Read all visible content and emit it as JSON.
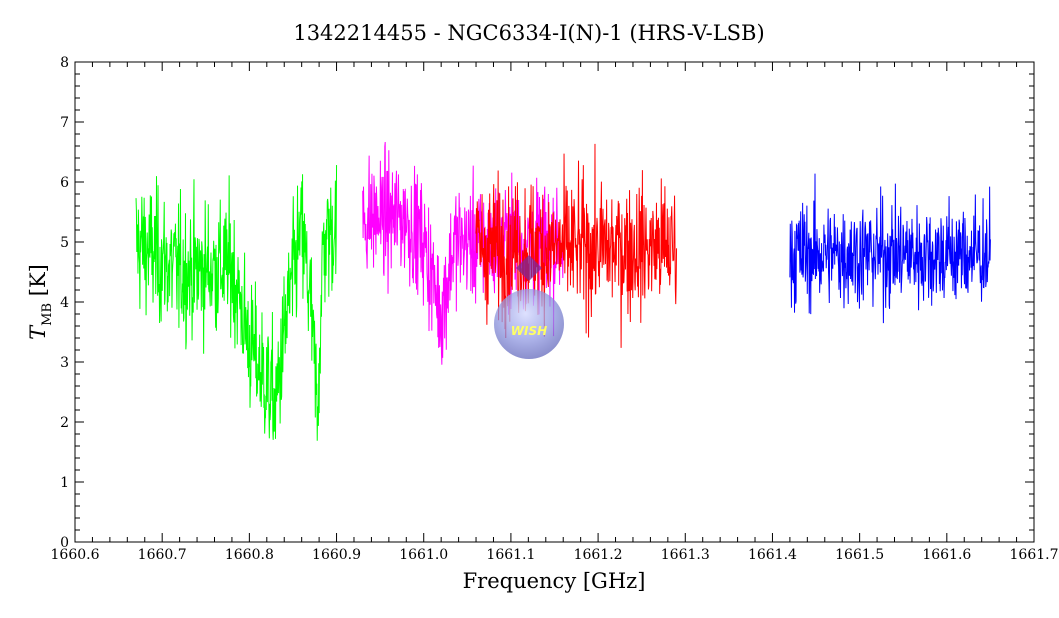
{
  "chart_data": {
    "type": "line",
    "title": "1342214455 - NGC6334-I(N)-1 (HRS-V-LSB)",
    "xlabel": "Frequency [GHz]",
    "ylabel": "T",
    "ylabel_sub": "MB",
    "ylabel_unit": "[K]",
    "xlim": [
      1660.6,
      1661.7
    ],
    "ylim": [
      0,
      8
    ],
    "xticks": [
      "1660.6",
      "1660.7",
      "1660.8",
      "1660.9",
      "1661.0",
      "1661.1",
      "1661.2",
      "1661.3",
      "1661.4",
      "1661.5",
      "1661.6",
      "1661.7"
    ],
    "yticks": [
      "0",
      "1",
      "2",
      "3",
      "4",
      "5",
      "6",
      "7",
      "8"
    ],
    "grid": false,
    "legend": "none",
    "logo_text": "WISH",
    "series": [
      {
        "color": "#00ff00",
        "x_range": [
          1660.67,
          1660.9
        ],
        "samples": 520,
        "noise": 1.0,
        "baseline": [
          [
            1660.67,
            5.0
          ],
          [
            1660.72,
            4.5
          ],
          [
            1660.78,
            4.6
          ],
          [
            1660.8,
            3.3
          ],
          [
            1660.83,
            2.3
          ],
          [
            1660.845,
            4.0
          ],
          [
            1660.86,
            5.2
          ],
          [
            1660.87,
            4.0
          ],
          [
            1660.878,
            2.2
          ],
          [
            1660.885,
            5.0
          ],
          [
            1660.9,
            5.3
          ]
        ]
      },
      {
        "color": "#ff00ff",
        "x_range": [
          1660.93,
          1661.16
        ],
        "samples": 500,
        "noise": 0.9,
        "baseline": [
          [
            1660.93,
            5.4
          ],
          [
            1660.98,
            5.4
          ],
          [
            1661.0,
            5.0
          ],
          [
            1661.02,
            3.8
          ],
          [
            1661.035,
            5.0
          ],
          [
            1661.16,
            5.0
          ]
        ]
      },
      {
        "color": "#ff0000",
        "x_range": [
          1661.06,
          1661.29
        ],
        "samples": 500,
        "noise": 1.0,
        "baseline": [
          [
            1661.06,
            4.9
          ],
          [
            1661.29,
            4.9
          ]
        ]
      },
      {
        "color": "#0000ff",
        "x_range": [
          1661.42,
          1661.65
        ],
        "samples": 520,
        "noise": 0.8,
        "baseline": [
          [
            1661.42,
            4.8
          ],
          [
            1661.65,
            4.8
          ]
        ]
      }
    ]
  }
}
